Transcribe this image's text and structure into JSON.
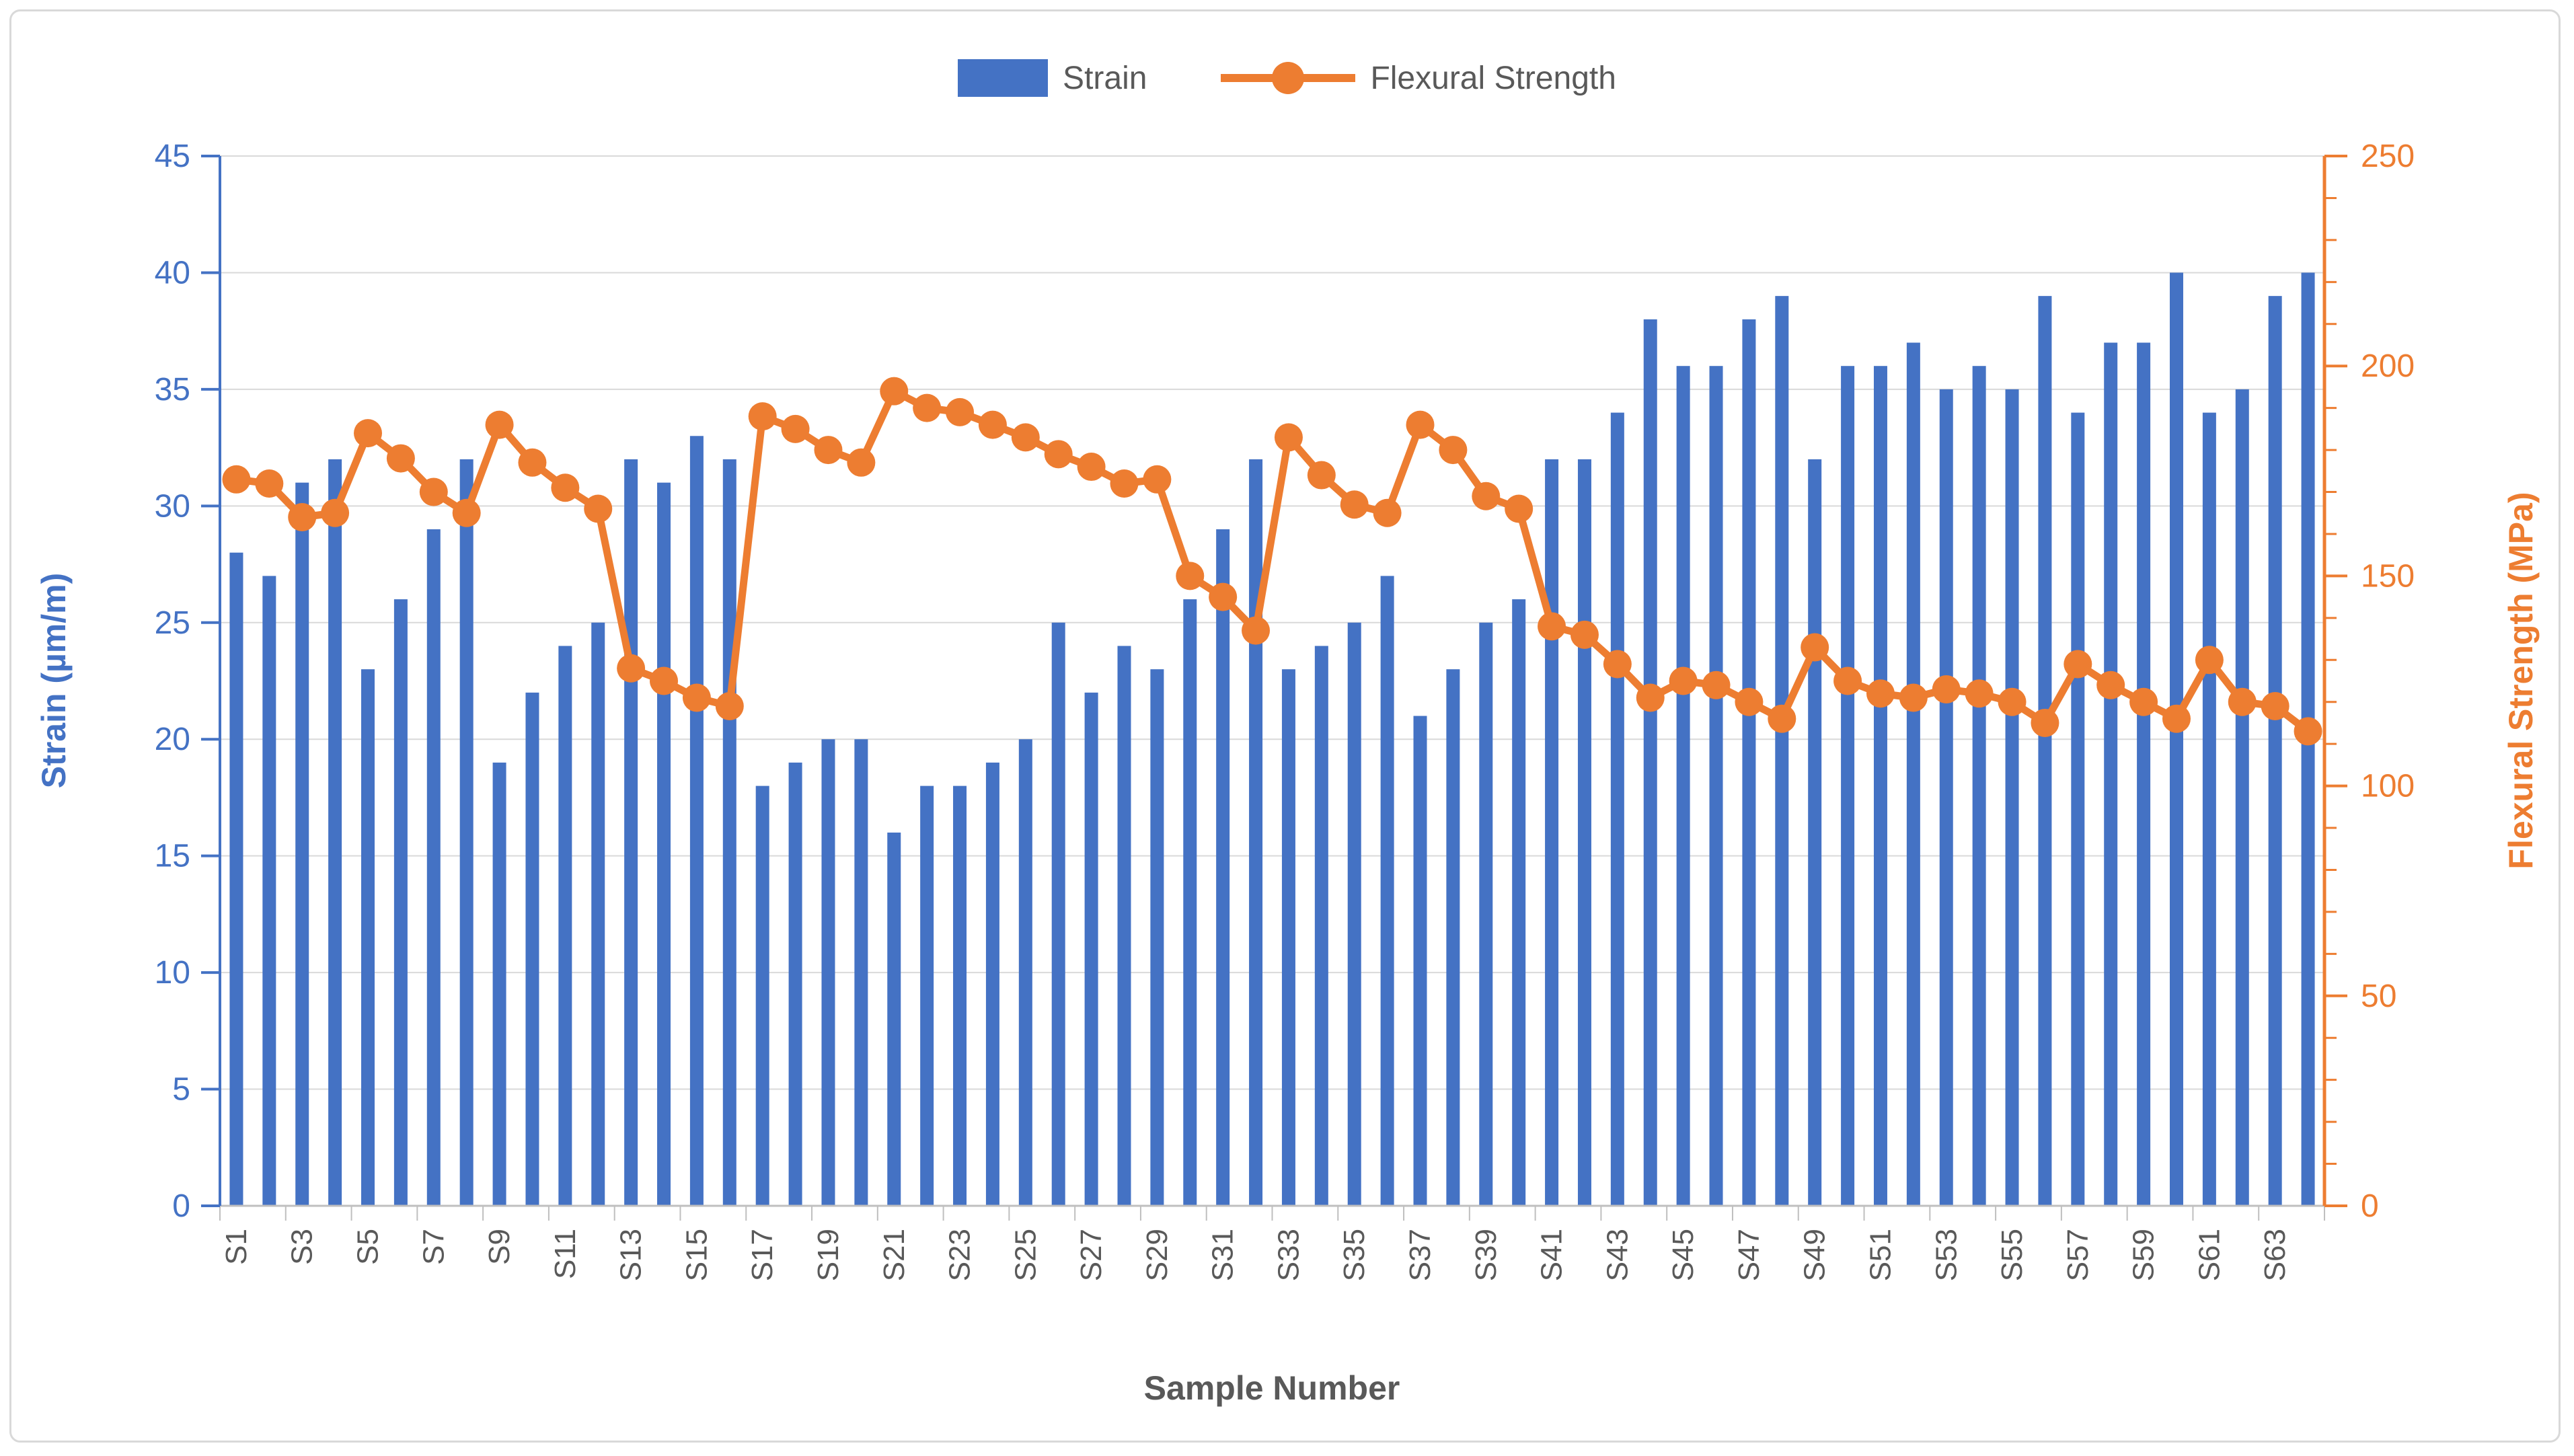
{
  "chart_data": {
    "type": "combo-bar-line",
    "background": "#FFFFFF",
    "border_color": "#D9D9D9",
    "grid": {
      "show": true,
      "color": "#D9D9D9",
      "axis_line_color": "#BFBFBF"
    },
    "legend": {
      "position": "top",
      "text_color": "#595959",
      "items": [
        {
          "label": "Strain",
          "marker": "bar-swatch"
        },
        {
          "label": "Flexural Strength",
          "marker": "line-dot-swatch"
        }
      ]
    },
    "categories": [
      "S1",
      "S2",
      "S3",
      "S4",
      "S5",
      "S6",
      "S7",
      "S8",
      "S9",
      "S10",
      "S11",
      "S12",
      "S13",
      "S14",
      "S15",
      "S16",
      "S17",
      "S18",
      "S19",
      "S20",
      "S21",
      "S22",
      "S23",
      "S24",
      "S25",
      "S26",
      "S27",
      "S28",
      "S29",
      "S30",
      "S31",
      "S32",
      "S33",
      "S34",
      "S35",
      "S36",
      "S37",
      "S38",
      "S39",
      "S40",
      "S41",
      "S42",
      "S43",
      "S44",
      "S45",
      "S46",
      "S47",
      "S48",
      "S49",
      "S50",
      "S51",
      "S52",
      "S53",
      "S54",
      "S55",
      "S56",
      "S57",
      "S58",
      "S59",
      "S60",
      "S61",
      "S62",
      "S63",
      "S64"
    ],
    "series": [
      {
        "name": "Strain",
        "type": "bar",
        "axis": "left",
        "color": "#4472C4",
        "values": [
          28,
          27,
          31,
          32,
          23,
          26,
          29,
          32,
          19,
          22,
          24,
          25,
          32,
          31,
          33,
          32,
          18,
          19,
          20,
          20,
          16,
          18,
          18,
          19,
          20,
          25,
          22,
          24,
          23,
          26,
          29,
          32,
          23,
          24,
          25,
          27,
          21,
          23,
          25,
          26,
          32,
          32,
          34,
          38,
          36,
          36,
          38,
          39,
          32,
          36,
          36,
          37,
          35,
          36,
          35,
          39,
          34,
          37,
          37,
          40,
          34,
          35,
          39,
          40
        ]
      },
      {
        "name": "Flexural Strength",
        "type": "line",
        "axis": "right",
        "color": "#ED7D31",
        "values": [
          173,
          172,
          164,
          165,
          184,
          178,
          170,
          165,
          186,
          177,
          171,
          166,
          128,
          125,
          121,
          119,
          188,
          185,
          180,
          177,
          194,
          190,
          189,
          186,
          183,
          179,
          176,
          172,
          173,
          150,
          145,
          137,
          183,
          174,
          167,
          165,
          186,
          180,
          169,
          166,
          138,
          136,
          129,
          121,
          125,
          124,
          120,
          116,
          133,
          125,
          122,
          121,
          123,
          122,
          120,
          115,
          129,
          124,
          120,
          116,
          130,
          120,
          119,
          113
        ]
      }
    ],
    "left_axis": {
      "title": "Strain (µm/m)",
      "min": 0,
      "max": 45,
      "step": 5,
      "color": "#4472C4",
      "tick_labels": [
        "0",
        "5",
        "10",
        "15",
        "20",
        "25",
        "30",
        "35",
        "40",
        "45"
      ]
    },
    "right_axis": {
      "title": "Flexural Strength (MPa)",
      "min": 0,
      "max": 250,
      "step": 50,
      "minor_step": 10,
      "color": "#ED7D31",
      "tick_labels": [
        "0",
        "50",
        "100",
        "150",
        "200",
        "250"
      ]
    },
    "x_axis": {
      "title": "Sample Number",
      "title_color": "#595959",
      "label_color": "#595959",
      "label_every": 2,
      "tick_labels": [
        "S1",
        "S3",
        "S5",
        "S7",
        "S9",
        "S11",
        "S13",
        "S15",
        "S17",
        "S19",
        "S21",
        "S23",
        "S25",
        "S27",
        "S29",
        "S31",
        "S33",
        "S35",
        "S37",
        "S39",
        "S41",
        "S43",
        "S45",
        "S47",
        "S49",
        "S51",
        "S53",
        "S55",
        "S57",
        "S59",
        "S61",
        "S63"
      ]
    }
  }
}
